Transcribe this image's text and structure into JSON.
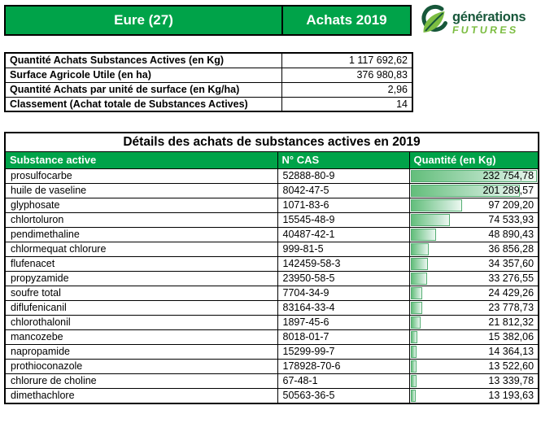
{
  "header": {
    "region_label": "Eure (27)",
    "period_label": "Achats 2019"
  },
  "logo": {
    "line1": "générations",
    "line2": "FUTURES"
  },
  "summary": {
    "rows": [
      {
        "label": "Quantité Achats Substances Actives (en Kg)",
        "value": "1 117 692,62"
      },
      {
        "label": "Surface Agricole Utile (en ha)",
        "value": "376 980,83"
      },
      {
        "label": "Quantité Achats par unité de surface (en Kg/ha)",
        "value": "2,96"
      },
      {
        "label": "Classement (Achat totale de Substances Actives)",
        "value": "14"
      }
    ]
  },
  "details": {
    "title": "Détails des achats de substances actives en 2019",
    "columns": [
      "Substance active",
      "N° CAS",
      "Quantité (en Kg)"
    ],
    "max_quantity": 232754.78,
    "rows": [
      {
        "substance": "prosulfocarbe",
        "cas": "52888-80-9",
        "quantity_display": "232 754,78",
        "quantity": 232754.78
      },
      {
        "substance": "huile de vaseline",
        "cas": "8042-47-5",
        "quantity_display": "201 289,57",
        "quantity": 201289.57
      },
      {
        "substance": "glyphosate",
        "cas": "1071-83-6",
        "quantity_display": "97 209,20",
        "quantity": 97209.2
      },
      {
        "substance": "chlortoluron",
        "cas": "15545-48-9",
        "quantity_display": "74 533,93",
        "quantity": 74533.93
      },
      {
        "substance": "pendimethaline",
        "cas": "40487-42-1",
        "quantity_display": "48 890,43",
        "quantity": 48890.43
      },
      {
        "substance": "chlormequat chlorure",
        "cas": "999-81-5",
        "quantity_display": "36 856,28",
        "quantity": 36856.28
      },
      {
        "substance": "flufenacet",
        "cas": "142459-58-3",
        "quantity_display": "34 357,60",
        "quantity": 34357.6
      },
      {
        "substance": "propyzamide",
        "cas": "23950-58-5",
        "quantity_display": "33 276,55",
        "quantity": 33276.55
      },
      {
        "substance": "soufre total",
        "cas": "7704-34-9",
        "quantity_display": "24 429,26",
        "quantity": 24429.26
      },
      {
        "substance": "diflufenicanil",
        "cas": "83164-33-4",
        "quantity_display": "23 778,73",
        "quantity": 23778.73
      },
      {
        "substance": "chlorothalonil",
        "cas": "1897-45-6",
        "quantity_display": "21 812,32",
        "quantity": 21812.32
      },
      {
        "substance": "mancozebe",
        "cas": "8018-01-7",
        "quantity_display": "15 382,06",
        "quantity": 15382.06
      },
      {
        "substance": "napropamide",
        "cas": "15299-99-7",
        "quantity_display": "14 364,13",
        "quantity": 14364.13
      },
      {
        "substance": "prothioconazole",
        "cas": "178928-70-6",
        "quantity_display": "13 522,60",
        "quantity": 13522.6
      },
      {
        "substance": "chlorure de choline",
        "cas": "67-48-1",
        "quantity_display": "13 339,78",
        "quantity": 13339.78
      },
      {
        "substance": "dimethachlore",
        "cas": "50563-36-5",
        "quantity_display": "13 193,63",
        "quantity": 13193.63
      }
    ]
  },
  "colors": {
    "header_green": "#00a349",
    "databar_start": "#63be7b",
    "databar_end": "#ecf8f0",
    "databar_border": "#55ae73",
    "logo_dark_green": "#17573a",
    "logo_light_green": "#7cbd42",
    "border_black": "#000000"
  }
}
